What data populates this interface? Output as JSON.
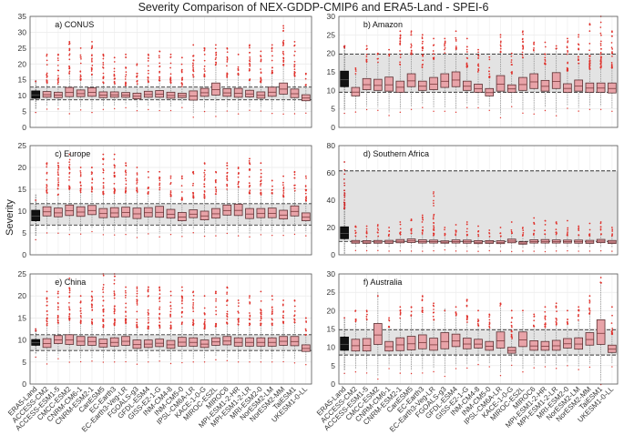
{
  "chart_data": {
    "type": "boxplot",
    "title": "Severity Comparison of NEX-GDDP-CMIP6 and ERA5-Land - SPEI-6",
    "ylabel": "Severity",
    "categories": [
      "ERA5-Land",
      "ACCESS-CM2",
      "ACCESS-ESM1-5",
      "CMCC-ESM2",
      "CNRM-CM6-1",
      "CNRM-ESM2-1",
      "CanESM5",
      "EC-Earth3",
      "EC-Earth3-Veg-LR",
      "FGOALS-g3",
      "GFDL-ESM4",
      "GISS-E2-1-G",
      "INM-CM4-8",
      "INM-CM5-0",
      "IPSL-CM6A-LR",
      "KACE-1-0-G",
      "MIROC-ES2L",
      "MIROC6",
      "MPI-ESM1-2-HR",
      "MPI-ESM1-2-LR",
      "MRI-ESM2-0",
      "NorESM2-LM",
      "NorESM2-MM",
      "TaiESM1",
      "UKESM1-0-LL"
    ],
    "panels": [
      {
        "label": "a) CONUS",
        "ylim": [
          0,
          35
        ],
        "yticks": [
          0,
          5,
          10,
          15,
          20,
          25,
          30,
          35
        ],
        "era5_band": [
          8.7,
          12.7
        ],
        "boxes": [
          [
            9.2,
            11.5
          ],
          [
            9.5,
            11.3
          ],
          [
            9.4,
            11.1
          ],
          [
            9.7,
            12.6
          ],
          [
            9.7,
            11.8
          ],
          [
            9.8,
            12.5
          ],
          [
            9.4,
            11.2
          ],
          [
            9.5,
            11.2
          ],
          [
            9.5,
            11.0
          ],
          [
            9.0,
            10.8
          ],
          [
            9.5,
            11.4
          ],
          [
            9.5,
            11.6
          ],
          [
            9.2,
            11.1
          ],
          [
            9.4,
            10.8
          ],
          [
            8.6,
            11.5
          ],
          [
            9.8,
            12.3
          ],
          [
            10.2,
            14.0
          ],
          [
            9.8,
            12.2
          ],
          [
            9.5,
            12.3
          ],
          [
            9.6,
            11.7
          ],
          [
            9.2,
            11.2
          ],
          [
            9.8,
            12.7
          ],
          [
            10.5,
            14.0
          ],
          [
            9.4,
            12.1
          ],
          [
            8.4,
            10.3
          ]
        ],
        "max_outlier": [
          14.5,
          23,
          23,
          27,
          25,
          27,
          23,
          22,
          23,
          20,
          23,
          24,
          23,
          22,
          26,
          25,
          26,
          25,
          23,
          26,
          24,
          26,
          32,
          27,
          17
        ]
      },
      {
        "label": "b) Amazon",
        "ylim": [
          0,
          30
        ],
        "yticks": [
          0,
          5,
          10,
          15,
          20,
          25,
          30
        ],
        "era5_band": [
          9.5,
          19.8
        ],
        "boxes": [
          [
            11.0,
            15.2
          ],
          [
            8.5,
            10.8
          ],
          [
            10.2,
            13.2
          ],
          [
            10.0,
            13.0
          ],
          [
            9.8,
            13.6
          ],
          [
            9.5,
            12.5
          ],
          [
            11.0,
            14.5
          ],
          [
            10.0,
            12.5
          ],
          [
            10.2,
            13.5
          ],
          [
            10.8,
            14.5
          ],
          [
            11.0,
            15.0
          ],
          [
            10.0,
            12.5
          ],
          [
            9.5,
            11.7
          ],
          [
            8.5,
            10.5
          ],
          [
            9.8,
            14.0
          ],
          [
            9.5,
            11.5
          ],
          [
            10.0,
            13.5
          ],
          [
            10.5,
            14.5
          ],
          [
            9.8,
            12.7
          ],
          [
            10.5,
            14.8
          ],
          [
            9.5,
            11.8
          ],
          [
            9.8,
            12.8
          ],
          [
            9.5,
            12.0
          ],
          [
            9.5,
            12.0
          ],
          [
            9.3,
            12.0
          ]
        ],
        "max_outlier": [
          22,
          16,
          22,
          20,
          21,
          26,
          26,
          25,
          24,
          24,
          26,
          24,
          21,
          19,
          25,
          20,
          26,
          23,
          23,
          22,
          24,
          25,
          28,
          30,
          26
        ]
      },
      {
        "label": "c) Europe",
        "ylim": [
          0,
          25
        ],
        "yticks": [
          0,
          5,
          10,
          15,
          20,
          25
        ],
        "era5_band": [
          6.8,
          11.7
        ],
        "boxes": [
          [
            7.8,
            10.2
          ],
          [
            8.9,
            11.0
          ],
          [
            8.7,
            10.7
          ],
          [
            9.0,
            11.4
          ],
          [
            8.8,
            11.0
          ],
          [
            9.2,
            11.3
          ],
          [
            8.5,
            10.6
          ],
          [
            8.6,
            10.8
          ],
          [
            8.7,
            10.9
          ],
          [
            8.3,
            10.7
          ],
          [
            8.7,
            10.8
          ],
          [
            8.6,
            11.1
          ],
          [
            8.4,
            10.4
          ],
          [
            7.8,
            9.7
          ],
          [
            8.5,
            10.3
          ],
          [
            8.0,
            10.0
          ],
          [
            8.4,
            10.6
          ],
          [
            9.1,
            11.4
          ],
          [
            9.0,
            11.6
          ],
          [
            8.3,
            10.6
          ],
          [
            8.5,
            10.6
          ],
          [
            8.5,
            10.7
          ],
          [
            8.2,
            10.2
          ],
          [
            8.9,
            11.2
          ],
          [
            7.8,
            9.6
          ]
        ],
        "max_outlier": [
          12.5,
          21,
          21,
          23,
          20,
          20,
          23,
          23,
          21,
          20,
          19,
          19,
          18,
          18,
          19,
          21,
          19,
          21,
          20,
          22,
          21,
          17,
          18,
          19,
          18
        ]
      },
      {
        "label": "d) Southern Africa",
        "ylim": [
          0,
          80
        ],
        "yticks": [
          0,
          20,
          40,
          60,
          80
        ],
        "era5_band": [
          9.8,
          61.5
        ],
        "boxes": [
          [
            11.8,
            20.5
          ],
          [
            8.5,
            10.5
          ],
          [
            8.4,
            10.4
          ],
          [
            8.5,
            10.5
          ],
          [
            8.4,
            10.6
          ],
          [
            8.8,
            11.2
          ],
          [
            9.0,
            11.6
          ],
          [
            8.6,
            11.0
          ],
          [
            8.6,
            10.8
          ],
          [
            8.5,
            10.2
          ],
          [
            8.6,
            10.9
          ],
          [
            8.5,
            10.8
          ],
          [
            8.2,
            10.4
          ],
          [
            8.4,
            10.4
          ],
          [
            8.2,
            10.3
          ],
          [
            8.8,
            11.5
          ],
          [
            7.8,
            9.6
          ],
          [
            8.6,
            11.0
          ],
          [
            8.6,
            11.2
          ],
          [
            8.6,
            10.9
          ],
          [
            8.6,
            10.8
          ],
          [
            8.5,
            10.8
          ],
          [
            8.4,
            10.6
          ],
          [
            8.9,
            11.3
          ],
          [
            8.3,
            10.5
          ]
        ],
        "max_outlier": [
          68,
          21,
          21,
          22,
          20,
          24,
          26,
          29,
          46,
          20,
          22,
          24,
          21,
          18,
          20,
          24,
          20,
          27,
          25,
          24,
          25,
          21,
          23,
          24,
          20
        ]
      },
      {
        "label": "e) China",
        "ylim": [
          0,
          25
        ],
        "yticks": [
          0,
          5,
          10,
          15,
          20,
          25
        ],
        "era5_band": [
          7.6,
          11.2
        ],
        "boxes": [
          [
            8.8,
            10.1
          ],
          [
            8.3,
            10.3
          ],
          [
            9.2,
            11.0
          ],
          [
            9.0,
            11.2
          ],
          [
            8.8,
            10.8
          ],
          [
            8.8,
            10.7
          ],
          [
            8.4,
            10.2
          ],
          [
            8.6,
            10.5
          ],
          [
            8.8,
            10.8
          ],
          [
            8.1,
            10.0
          ],
          [
            8.3,
            10.0
          ],
          [
            8.5,
            10.2
          ],
          [
            8.1,
            9.9
          ],
          [
            8.6,
            10.6
          ],
          [
            8.6,
            10.5
          ],
          [
            8.3,
            10.0
          ],
          [
            8.8,
            10.5
          ],
          [
            8.9,
            10.8
          ],
          [
            8.6,
            10.5
          ],
          [
            8.6,
            10.5
          ],
          [
            8.6,
            10.5
          ],
          [
            8.6,
            10.5
          ],
          [
            8.8,
            10.8
          ],
          [
            8.7,
            10.8
          ],
          [
            7.4,
            8.9
          ]
        ],
        "max_outlier": [
          12.5,
          21,
          21,
          24,
          20,
          21,
          25,
          25,
          22,
          22,
          22,
          22,
          21,
          22,
          21,
          20,
          21,
          22,
          19,
          20,
          21,
          20,
          19,
          19,
          15
        ]
      },
      {
        "label": "f) Australia",
        "ylim": [
          0,
          30
        ],
        "yticks": [
          0,
          5,
          10,
          15,
          20,
          25,
          30
        ],
        "era5_band": [
          7.9,
          14.8
        ],
        "boxes": [
          [
            9.2,
            12.8
          ],
          [
            9.0,
            12.2
          ],
          [
            9.0,
            12.4
          ],
          [
            10.8,
            16.5
          ],
          [
            9.0,
            11.6
          ],
          [
            9.1,
            12.6
          ],
          [
            9.3,
            13.0
          ],
          [
            9.6,
            13.4
          ],
          [
            9.2,
            12.5
          ],
          [
            9.6,
            14.0
          ],
          [
            10.2,
            13.6
          ],
          [
            9.6,
            12.5
          ],
          [
            9.8,
            12.2
          ],
          [
            9.2,
            11.6
          ],
          [
            9.8,
            14.2
          ],
          [
            8.4,
            10.0
          ],
          [
            10.2,
            14.2
          ],
          [
            9.2,
            11.8
          ],
          [
            9.2,
            11.6
          ],
          [
            9.2,
            11.9
          ],
          [
            9.8,
            12.4
          ],
          [
            9.5,
            12.6
          ],
          [
            10.6,
            14.0
          ],
          [
            10.8,
            17.5
          ],
          [
            8.6,
            10.6
          ]
        ],
        "max_outlier": [
          18,
          20,
          20,
          24,
          18,
          21,
          21,
          24,
          22,
          20,
          21,
          23,
          20,
          19,
          22,
          20,
          20,
          19,
          21,
          22,
          20,
          21,
          24,
          29,
          21
        ]
      }
    ]
  }
}
